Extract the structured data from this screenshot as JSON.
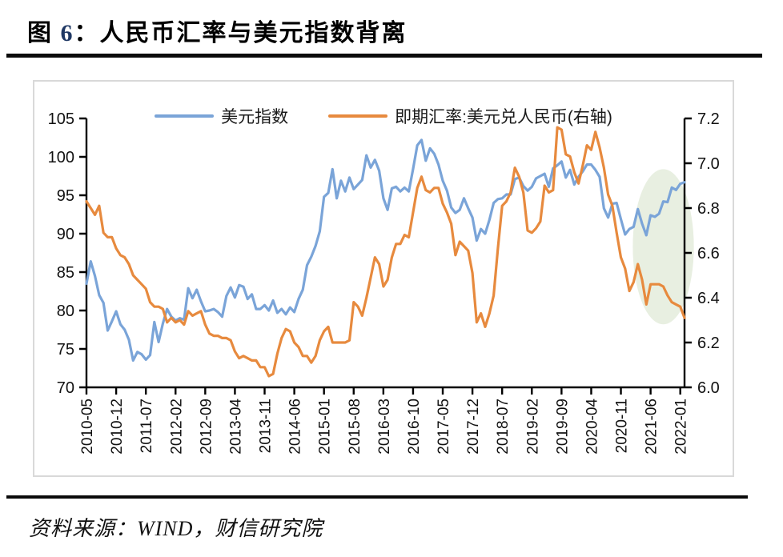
{
  "page": {
    "title_prefix": "图 ",
    "title_number": "6",
    "title_rest": "：人民币汇率与美元指数背离",
    "source": "资料来源：WIND，财信研究院"
  },
  "colors": {
    "usd_index_line": "#7AA4D8",
    "cny_rate_line": "#E78A3E",
    "highlight_ellipse": "#E8EFE1",
    "panel_border": "#D9D9D9",
    "axis": "#000000",
    "title_number": "#1F3864",
    "rule": "#0a0a0a"
  },
  "chart_data": {
    "type": "line",
    "title": "",
    "frequency": "monthly",
    "x_start": "2010-05",
    "x_end": "2022-02",
    "x_tick_labels": [
      "2010-05",
      "2010-12",
      "2011-07",
      "2012-02",
      "2012-09",
      "2013-04",
      "2013-11",
      "2014-06",
      "2015-01",
      "2015-08",
      "2016-03",
      "2016-10",
      "2017-05",
      "2017-12",
      "2018-07",
      "2019-02",
      "2019-09",
      "2020-04",
      "2020-11",
      "2021-06",
      "2022-01"
    ],
    "x_tick_step_months": 7,
    "left_axis": {
      "ticks": [
        105,
        100,
        95,
        90,
        85,
        80,
        75,
        70
      ],
      "range": [
        70,
        105
      ]
    },
    "right_axis": {
      "ticks": [
        "7.2",
        "7.0",
        "6.8",
        "6.6",
        "6.4",
        "6.2",
        "6.0"
      ],
      "range": [
        6.0,
        7.2
      ]
    },
    "legend_position": "top",
    "grid": false,
    "series": [
      {
        "name": "美元指数",
        "axis": "left",
        "color": "#7AA4D8",
        "values": [
          83.5,
          86.4,
          84.5,
          82.0,
          81.0,
          77.4,
          78.6,
          79.9,
          78.2,
          77.5,
          76.2,
          73.5,
          74.6,
          74.3,
          73.6,
          74.2,
          78.5,
          75.9,
          78.3,
          80.2,
          79.2,
          78.7,
          79.0,
          78.8,
          82.9,
          81.6,
          82.7,
          81.2,
          79.9,
          80.0,
          80.2,
          79.8,
          79.2,
          81.9,
          83.0,
          81.7,
          83.3,
          83.1,
          81.5,
          82.1,
          80.2,
          80.2,
          80.7,
          80.0,
          81.3,
          79.7,
          80.2,
          79.5,
          80.4,
          79.8,
          81.5,
          82.7,
          85.9,
          87.0,
          88.4,
          90.3,
          94.8,
          95.3,
          98.4,
          94.6,
          96.9,
          95.5,
          97.3,
          95.8,
          96.4,
          97.0,
          100.2,
          98.6,
          99.6,
          98.2,
          94.6,
          93.1,
          95.9,
          96.1,
          95.5,
          96.0,
          95.5,
          98.4,
          101.5,
          102.2,
          99.5,
          101.1,
          100.4,
          99.0,
          96.9,
          95.6,
          93.4,
          92.7,
          93.1,
          94.6,
          93.3,
          92.1,
          89.1,
          90.6,
          90.0,
          91.8,
          94.0,
          94.5,
          94.6,
          95.1,
          95.1,
          97.1,
          97.3,
          96.2,
          95.6,
          96.1,
          97.2,
          97.5,
          97.8,
          96.1,
          98.5,
          98.9,
          99.4,
          97.3,
          98.3,
          96.4,
          97.4,
          98.1,
          99.0,
          99.0,
          98.3,
          97.4,
          93.3,
          92.1,
          93.9,
          94.0,
          91.9,
          89.9,
          90.6,
          90.9,
          93.2,
          91.3,
          89.8,
          92.4,
          92.2,
          92.6,
          94.2,
          94.1,
          96.0,
          95.7,
          96.5,
          96.7
        ]
      },
      {
        "name": "即期汇率:美元兑人民币(右轴)",
        "axis": "right",
        "color": "#E78A3E",
        "values": [
          6.83,
          6.8,
          6.77,
          6.81,
          6.69,
          6.67,
          6.67,
          6.62,
          6.59,
          6.58,
          6.55,
          6.5,
          6.48,
          6.46,
          6.44,
          6.38,
          6.36,
          6.36,
          6.35,
          6.29,
          6.31,
          6.29,
          6.3,
          6.28,
          6.34,
          6.32,
          6.33,
          6.34,
          6.28,
          6.24,
          6.23,
          6.23,
          6.22,
          6.22,
          6.21,
          6.16,
          6.13,
          6.14,
          6.13,
          6.12,
          6.12,
          6.09,
          6.09,
          6.05,
          6.06,
          6.15,
          6.22,
          6.26,
          6.25,
          6.2,
          6.18,
          6.14,
          6.14,
          6.11,
          6.14,
          6.21,
          6.25,
          6.27,
          6.2,
          6.2,
          6.2,
          6.2,
          6.21,
          6.38,
          6.36,
          6.32,
          6.4,
          6.49,
          6.58,
          6.55,
          6.45,
          6.48,
          6.58,
          6.64,
          6.64,
          6.68,
          6.67,
          6.78,
          6.89,
          6.94,
          6.88,
          6.87,
          6.89,
          6.89,
          6.82,
          6.78,
          6.73,
          6.59,
          6.65,
          6.63,
          6.61,
          6.51,
          6.29,
          6.33,
          6.27,
          6.33,
          6.41,
          6.62,
          6.81,
          6.83,
          6.87,
          6.98,
          6.94,
          6.87,
          6.7,
          6.69,
          6.71,
          6.74,
          6.9,
          6.87,
          6.88,
          7.16,
          7.15,
          7.04,
          7.03,
          6.96,
          6.91,
          6.99,
          7.08,
          7.06,
          7.14,
          7.07,
          6.98,
          6.86,
          6.81,
          6.69,
          6.58,
          6.53,
          6.43,
          6.47,
          6.55,
          6.48,
          6.37,
          6.46,
          6.46,
          6.46,
          6.45,
          6.41,
          6.38,
          6.37,
          6.36,
          6.31
        ]
      }
    ],
    "highlight_ellipse": {
      "center_month_index": 136,
      "month_radius": 7.2,
      "center_left_axis_value": 88.3,
      "left_axis_value_radius": 10.1,
      "color": "#E8EFE1"
    }
  }
}
